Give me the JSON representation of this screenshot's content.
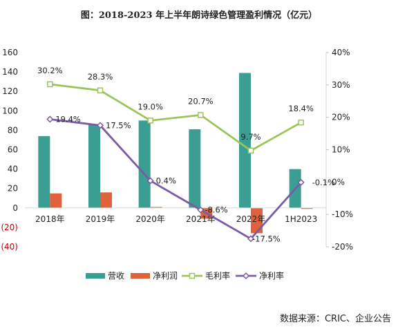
{
  "chart_data": {
    "type": "bar+line",
    "title": "图：2018-2023 年上半年朗诗绿色管理盈利情况（亿元）",
    "source": "数据来源：CRIC、企业公告",
    "categories": [
      "2018年",
      "2019年",
      "2020年",
      "2021年",
      "2022年",
      "1H2023"
    ],
    "left_axis": {
      "ylim": [
        -40,
        160
      ],
      "ticks": [
        "160",
        "140",
        "120",
        "100",
        "80",
        "60",
        "40",
        "20",
        "0",
        "(20)",
        "(40)"
      ],
      "tick_values": [
        160,
        140,
        120,
        100,
        80,
        60,
        40,
        20,
        0,
        -20,
        -40
      ],
      "negative_color": "#c00000"
    },
    "right_axis": {
      "ylim": [
        -20,
        40
      ],
      "ticks": [
        "40%",
        "30%",
        "20%",
        "10%",
        "0%",
        "-10%",
        "-20%"
      ],
      "tick_values": [
        40,
        30,
        20,
        10,
        0,
        -10,
        -20
      ]
    },
    "series": [
      {
        "name": "营收",
        "kind": "bar",
        "axis": "left",
        "color": "#3a9e92",
        "values": [
          74,
          86,
          90,
          81,
          139,
          40
        ]
      },
      {
        "name": "净利润",
        "kind": "bar",
        "axis": "left",
        "color": "#e0613a",
        "values": [
          15,
          16,
          1,
          -11,
          -26,
          -1
        ]
      },
      {
        "name": "毛利率",
        "kind": "line",
        "axis": "right",
        "color": "#9dc35a",
        "marker": "square",
        "values": [
          30.2,
          28.3,
          19.0,
          20.7,
          9.7,
          18.4
        ],
        "labels": [
          "30.2%",
          "28.3%",
          "19.0%",
          "20.7%",
          "9.7%",
          "18.4%"
        ]
      },
      {
        "name": "净利率",
        "kind": "line",
        "axis": "right",
        "color": "#7a5ba8",
        "marker": "diamond",
        "values": [
          19.4,
          17.5,
          0.4,
          -8.6,
          -17.5,
          -0.1
        ],
        "labels": [
          "19.4%",
          "17.5%",
          "0.4%",
          "-8.6%",
          "-17.5%",
          "-0.1%"
        ]
      }
    ],
    "legend_position": "bottom",
    "grid": false
  }
}
